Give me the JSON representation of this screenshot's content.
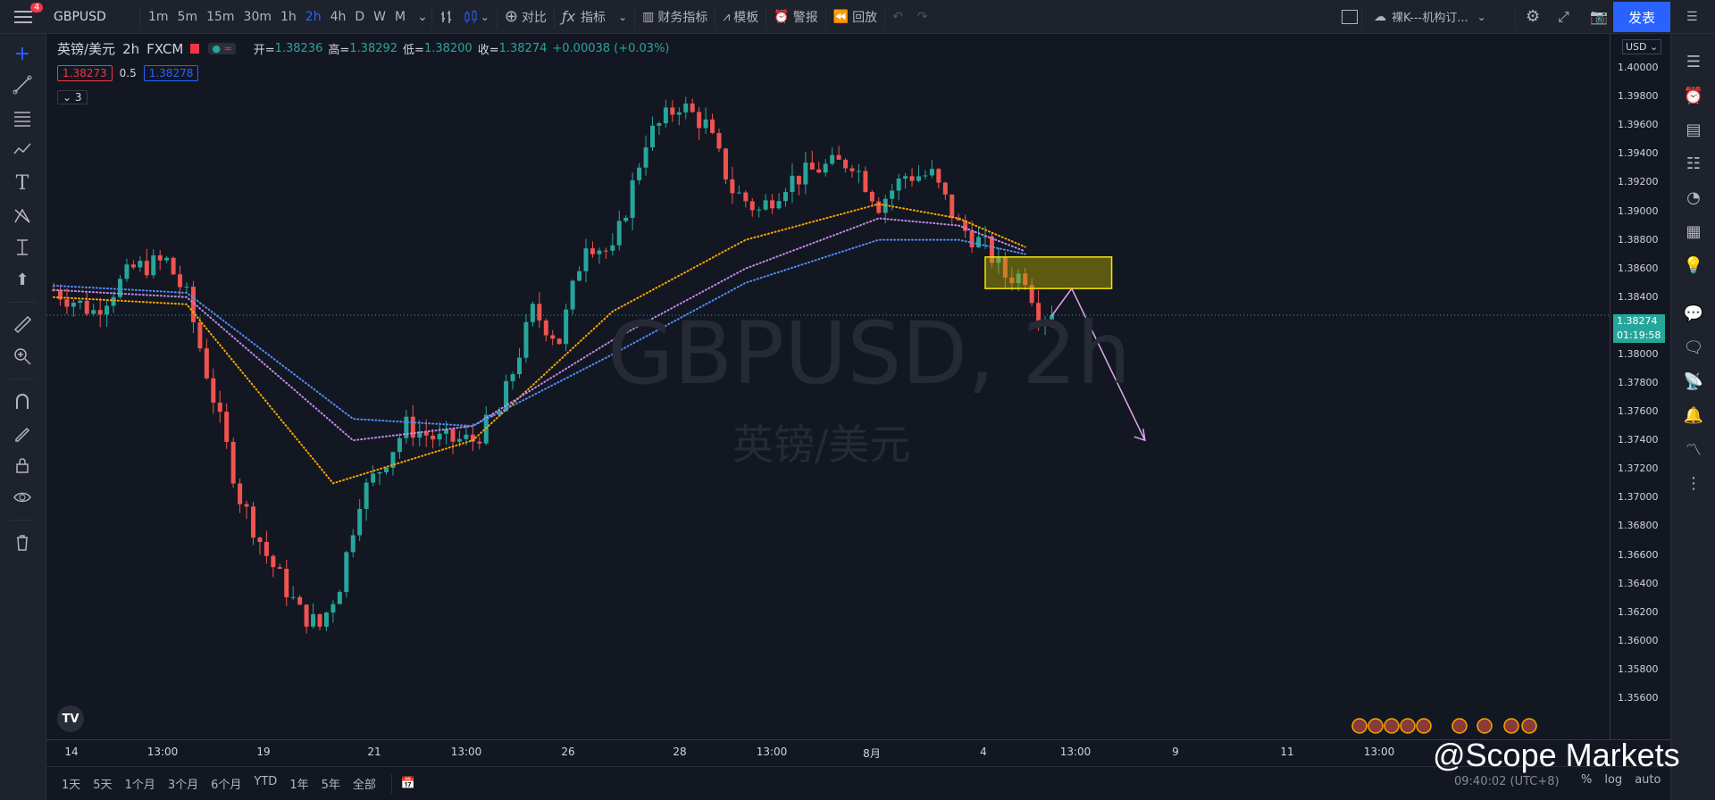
{
  "toolbar": {
    "notification_count": "4",
    "symbol": "GBPUSD",
    "intervals": [
      "1m",
      "5m",
      "15m",
      "30m",
      "1h",
      "2h",
      "4h",
      "D",
      "W",
      "M"
    ],
    "active_interval": "2h",
    "compare_label": "对比",
    "indicators_label": "指标",
    "financials_label": "财务指标",
    "templates_label": "模板",
    "alerts_label": "警报",
    "replay_label": "回放",
    "layout_name": "裸K---机构订...",
    "publish_label": "发表"
  },
  "legend": {
    "symbol_name": "英镑/美元",
    "interval": "2h",
    "source": "FXCM",
    "open_label": "开=",
    "open": "1.38236",
    "high_label": "高=",
    "high": "1.38292",
    "low_label": "低=",
    "low": "1.38200",
    "close_label": "收=",
    "close": "1.38274",
    "change": "+0.00038 (+0.03%)",
    "bid": "1.38273",
    "spread": "0.5",
    "ask": "1.38278",
    "collapsed_count": "3"
  },
  "watermark": {
    "main": "GBPUSD, 2h",
    "sub": "英镑/美元"
  },
  "price_axis": {
    "currency": "USD",
    "ticks": [
      "1.40000",
      "1.39800",
      "1.39600",
      "1.39400",
      "1.39200",
      "1.39000",
      "1.38800",
      "1.38600",
      "1.38400",
      "1.38000",
      "1.37800",
      "1.37600",
      "1.37400",
      "1.37200",
      "1.37000",
      "1.36800",
      "1.36600",
      "1.36400",
      "1.36200",
      "1.36000",
      "1.35800",
      "1.35600"
    ],
    "current_price": "1.38274",
    "countdown": "01:19:58"
  },
  "time_axis": {
    "ticks": [
      "14",
      "13:00",
      "19",
      "21",
      "13:00",
      "26",
      "28",
      "13:00",
      "8月",
      "4",
      "13:00",
      "9",
      "11",
      "13:00"
    ]
  },
  "bottom": {
    "ranges": [
      "1天",
      "5天",
      "1个月",
      "3个月",
      "6个月",
      "YTD",
      "1年",
      "5年",
      "全部"
    ],
    "timestamp": "09:40:02 (UTC+8)",
    "pct": "%",
    "log": "log",
    "auto": "auto"
  },
  "overlay": {
    "brand": "@Scope Markets"
  },
  "chart_data": {
    "type": "candlestick",
    "symbol": "GBPUSD",
    "interval": "2h",
    "ylim": [
      1.355,
      1.402
    ],
    "last_price": 1.38274,
    "close_path": [
      [
        0,
        1.3845
      ],
      [
        6,
        1.383
      ],
      [
        12,
        1.386
      ],
      [
        17,
        1.3865
      ],
      [
        20,
        1.384
      ],
      [
        24,
        1.377
      ],
      [
        28,
        1.37
      ],
      [
        32,
        1.366
      ],
      [
        37,
        1.362
      ],
      [
        40,
        1.361
      ],
      [
        43,
        1.364
      ],
      [
        46,
        1.37
      ],
      [
        49,
        1.372
      ],
      [
        53,
        1.375
      ],
      [
        58,
        1.374
      ],
      [
        63,
        1.374
      ],
      [
        67,
        1.376
      ],
      [
        72,
        1.383
      ],
      [
        76,
        1.381
      ],
      [
        80,
        1.388
      ],
      [
        84,
        1.387
      ],
      [
        89,
        1.395
      ],
      [
        94,
        1.3975
      ],
      [
        98,
        1.396
      ],
      [
        102,
        1.3915
      ],
      [
        106,
        1.39
      ],
      [
        110,
        1.392
      ],
      [
        115,
        1.393
      ],
      [
        120,
        1.3935
      ],
      [
        124,
        1.3905
      ],
      [
        128,
        1.3925
      ],
      [
        132,
        1.3925
      ],
      [
        136,
        1.389
      ],
      [
        140,
        1.3875
      ],
      [
        143,
        1.3855
      ],
      [
        146,
        1.3855
      ],
      [
        148,
        1.383
      ],
      [
        150,
        1.3827
      ]
    ],
    "moving_averages": [
      {
        "color": "#f7a600",
        "points": [
          [
            0,
            1.384
          ],
          [
            20,
            1.3835
          ],
          [
            42,
            1.371
          ],
          [
            63,
            1.374
          ],
          [
            84,
            1.383
          ],
          [
            104,
            1.388
          ],
          [
            124,
            1.3905
          ],
          [
            136,
            1.3895
          ],
          [
            146,
            1.3875
          ]
        ]
      },
      {
        "color": "#c589e8",
        "points": [
          [
            0,
            1.3845
          ],
          [
            20,
            1.384
          ],
          [
            45,
            1.374
          ],
          [
            63,
            1.375
          ],
          [
            84,
            1.381
          ],
          [
            104,
            1.386
          ],
          [
            124,
            1.3895
          ],
          [
            136,
            1.389
          ],
          [
            146,
            1.3872
          ]
        ]
      },
      {
        "color": "#4f8ef7",
        "points": [
          [
            0,
            1.3848
          ],
          [
            20,
            1.3843
          ],
          [
            45,
            1.3755
          ],
          [
            63,
            1.375
          ],
          [
            84,
            1.38
          ],
          [
            104,
            1.385
          ],
          [
            124,
            1.388
          ],
          [
            136,
            1.388
          ],
          [
            146,
            1.387
          ]
        ]
      }
    ],
    "zone": {
      "x_from": 140,
      "x_to": 159,
      "y_low": 1.3846,
      "y_high": 1.3868
    },
    "projection": [
      [
        150,
        1.3827
      ],
      [
        153,
        1.3846
      ],
      [
        164,
        1.374
      ]
    ]
  }
}
